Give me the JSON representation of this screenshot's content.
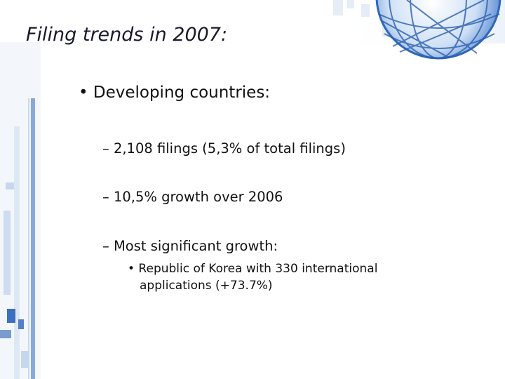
{
  "title": "Filing trends in 2007:",
  "bullets": [
    {
      "text": "• Developing countries:",
      "items": [
        {
          "text": "– 2,108 filings (5,3% of total filings)"
        },
        {
          "text": "– 10,5% growth over 2006"
        },
        {
          "text": "– Most significant growth:",
          "items": [
            {
              "text": "• Republic of Korea with 330 international applications (+73.7%)"
            }
          ]
        }
      ]
    }
  ]
}
